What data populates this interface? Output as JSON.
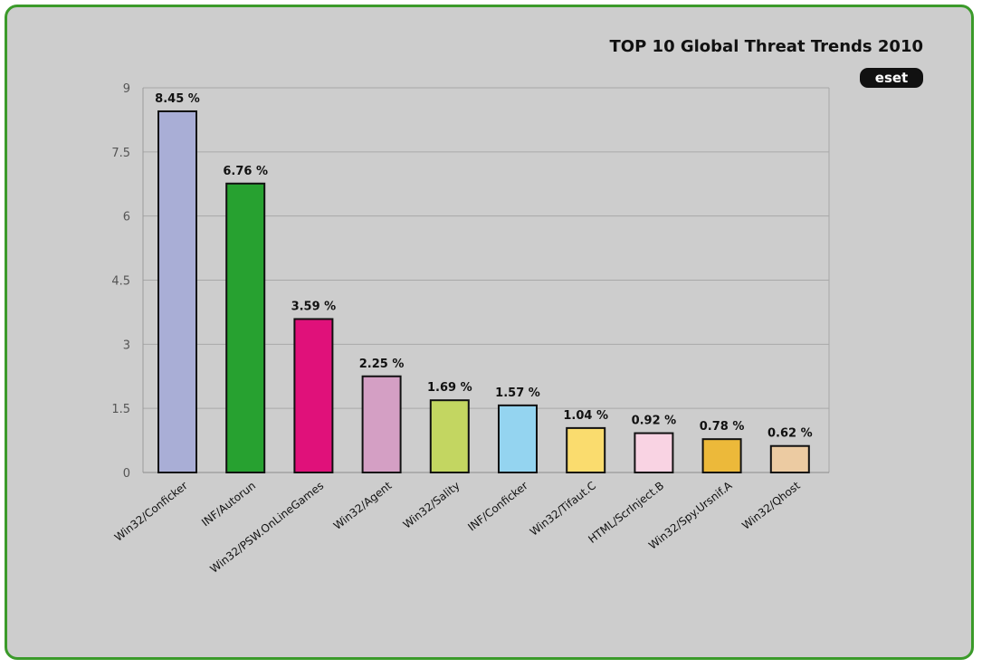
{
  "chart_data": {
    "type": "bar",
    "title": "TOP 10 Global Threat Trends 2010",
    "brand": "eset",
    "categories": [
      "Win32/Conficker",
      "INF/Autorun",
      "Win32/PSW.OnLineGames",
      "Win32/Agent",
      "Win32/Sality",
      "INF/Conficker",
      "Win32/Tifaut.C",
      "HTML/ScrInject.B",
      "Win32/Spy.Ursnif.A",
      "Win32/Qhost"
    ],
    "values": [
      8.45,
      6.76,
      3.59,
      2.25,
      1.69,
      1.57,
      1.04,
      0.92,
      0.78,
      0.62
    ],
    "value_labels": [
      "8.45 %",
      "6.76 %",
      "3.59 %",
      "2.25 %",
      "1.69 %",
      "1.57 %",
      "1.04 %",
      "0.92 %",
      "0.78 %",
      "0.62 %"
    ],
    "colors": [
      "#a9aed6",
      "#27a130",
      "#e0117a",
      "#d49fc4",
      "#c3d661",
      "#94d4f0",
      "#fadc6e",
      "#f9d3e3",
      "#ecb93a",
      "#eccba2"
    ],
    "ylim": [
      0,
      9
    ],
    "yticks": [
      0,
      1.5,
      3,
      4.5,
      6,
      7.5,
      9
    ],
    "ytick_labels": [
      "0",
      "1.5",
      "3",
      "4.5",
      "6",
      "7.5",
      "9"
    ],
    "xlabel": "",
    "ylabel": "",
    "grid": true,
    "legend": "none",
    "frame_color": "#3b9a2a",
    "background_color": "#cdcdcd"
  }
}
